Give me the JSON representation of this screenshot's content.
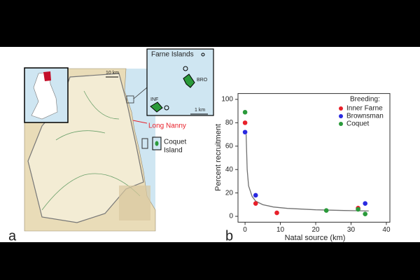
{
  "panel_labels": [
    "a",
    "b"
  ],
  "map": {
    "inset_title": "Farne Islands",
    "island_labels": [
      "BRO",
      "INF"
    ],
    "inset_scale": "1 km",
    "map_scale": "10 km",
    "site_red": "Long Nanny",
    "site_coquet": [
      "Coquet",
      "Island"
    ]
  },
  "chart_data": {
    "type": "scatter",
    "x_label": "Natal source (km)",
    "y_label": "Percent recruitment",
    "legend_title": "Breeding:",
    "series": [
      {
        "name": "Inner Farne",
        "color": "#e8202a",
        "x": [
          0,
          3,
          9,
          32
        ],
        "values": [
          80,
          11,
          3,
          7
        ]
      },
      {
        "name": "Brownsman",
        "color": "#2a2ae0",
        "x": [
          0,
          3,
          34
        ],
        "values": [
          72,
          18,
          11
        ]
      },
      {
        "name": "Coquet",
        "color": "#2a9a3a",
        "x": [
          0,
          23,
          32,
          34
        ],
        "values": [
          89,
          5,
          6,
          2
        ]
      }
    ],
    "fit": {
      "color": "#707070",
      "x": [
        0.3,
        0.6,
        1,
        2,
        3,
        5,
        8,
        12,
        20,
        28,
        35
      ],
      "values": [
        70,
        40,
        26,
        17,
        13,
        10,
        8,
        6.8,
        5.6,
        5,
        4.6
      ]
    },
    "xlim": [
      -2,
      41
    ],
    "ylim": [
      -5,
      105
    ],
    "xticks": [
      0,
      10,
      20,
      30,
      40
    ],
    "yticks": [
      0,
      20,
      40,
      60,
      80,
      100
    ]
  }
}
